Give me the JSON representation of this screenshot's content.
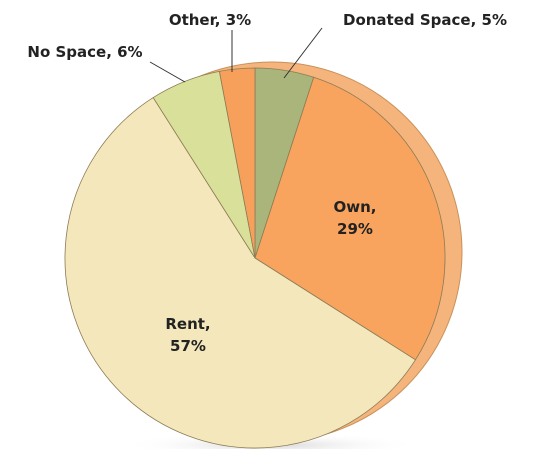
{
  "chart_data": {
    "type": "pie",
    "value_labels": [
      "Donated Space, 5%",
      "Own,\n29%",
      "Rent,\n57%",
      "No Space, 6%",
      "Other, 3%"
    ],
    "values": [
      5,
      29,
      57,
      6,
      3
    ],
    "colors": [
      "#a9b57a",
      "#f8a45f",
      "#f3e7bb",
      "#d8e09a",
      "#f6a05c"
    ]
  }
}
